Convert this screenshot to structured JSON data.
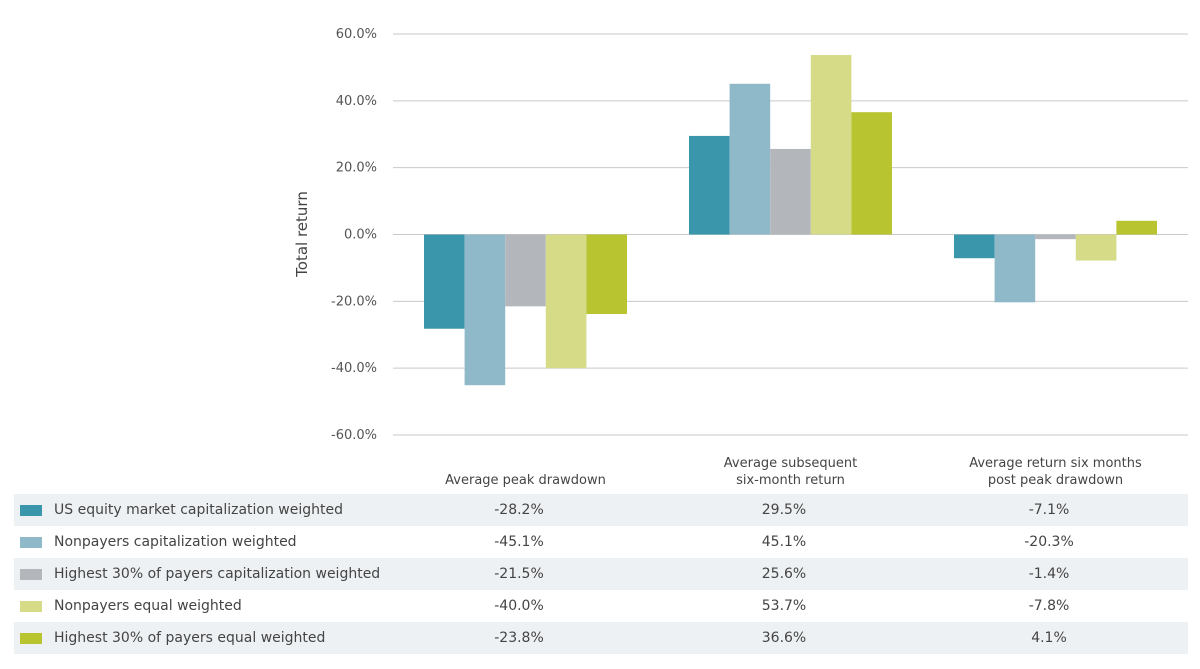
{
  "chart_data": {
    "type": "bar",
    "ylabel": "Total return",
    "ylim": [
      -60,
      60
    ],
    "yticks": [
      60,
      40,
      20,
      0,
      -20,
      -40,
      -60
    ],
    "ytick_labels": [
      "60.0%",
      "40.0%",
      "20.0%",
      "0.0%",
      "-20.0%",
      "-40.0%",
      "-60.0%"
    ],
    "categories": [
      [
        "Average peak drawdown"
      ],
      [
        "Average subsequent",
        "six-month return"
      ],
      [
        "Average return six months",
        "post peak drawdown"
      ]
    ],
    "grid": true,
    "series": [
      {
        "name": "US equity market capitalization weighted",
        "color": "#3a97ab",
        "values": [
          -28.2,
          29.5,
          -7.1
        ],
        "labels": [
          "-28.2%",
          "29.5%",
          "-7.1%"
        ]
      },
      {
        "name": "Nonpayers capitalization weighted",
        "color": "#8fb9c8",
        "values": [
          -45.1,
          45.1,
          -20.3
        ],
        "labels": [
          "-45.1%",
          "45.1%",
          "-20.3%"
        ]
      },
      {
        "name": "Highest 30% of payers capitalization weighted",
        "color": "#b3b6bb",
        "values": [
          -21.5,
          25.6,
          -1.4
        ],
        "labels": [
          "-21.5%",
          "25.6%",
          "-1.4%"
        ]
      },
      {
        "name": "Nonpayers equal weighted",
        "color": "#d5db87",
        "values": [
          -40.0,
          53.7,
          -7.8
        ],
        "labels": [
          "-40.0%",
          "53.7%",
          "-7.8%"
        ]
      },
      {
        "name": "Highest 30% of payers equal weighted",
        "color": "#b8c530",
        "values": [
          -23.8,
          36.6,
          4.1
        ],
        "labels": [
          "-23.8%",
          "36.6%",
          "4.1%"
        ]
      }
    ]
  }
}
